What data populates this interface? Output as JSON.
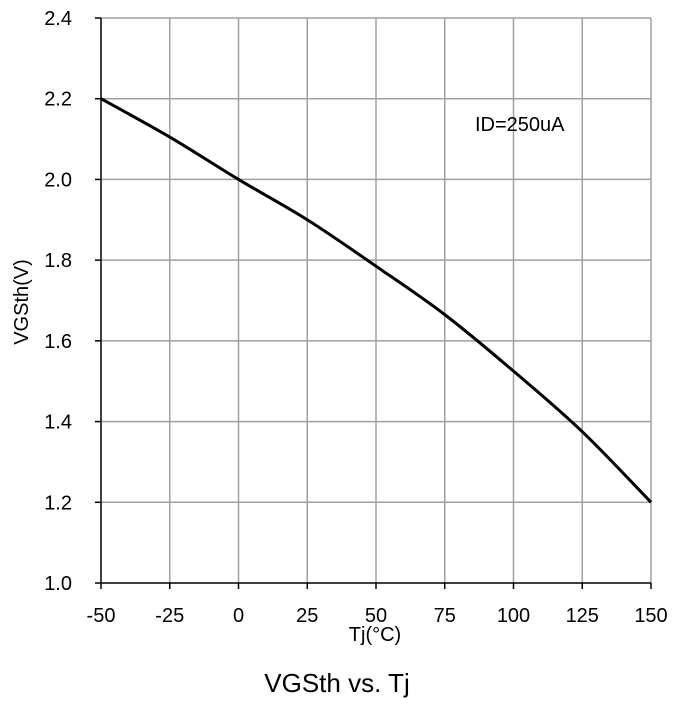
{
  "chart_data": {
    "type": "line",
    "title": "VGSth vs. Tj",
    "xlabel": "Tj(°C)",
    "ylabel": "VGSth(V)",
    "xlim": [
      -50,
      150
    ],
    "ylim": [
      1.0,
      2.4
    ],
    "xticks": [
      -50,
      -25,
      0,
      25,
      50,
      75,
      100,
      125,
      150
    ],
    "yticks": [
      1.0,
      1.2,
      1.4,
      1.6,
      1.8,
      2.0,
      2.2,
      2.4
    ],
    "ytick_labels": [
      "1.0",
      "1.2",
      "1.4",
      "1.6",
      "1.8",
      "2.0",
      "2.2",
      "2.4"
    ],
    "grid": true,
    "annotation": "ID=250uA",
    "series": [
      {
        "x": [
          -50,
          -25,
          0,
          25,
          50,
          75,
          100,
          125,
          150
        ],
        "y": [
          2.2,
          2.105,
          2.0,
          1.9,
          1.785,
          1.665,
          1.525,
          1.375,
          1.2
        ]
      }
    ],
    "colors": {
      "line": "#000000",
      "grid": "#a0a0a0",
      "axis": "#000000"
    }
  }
}
